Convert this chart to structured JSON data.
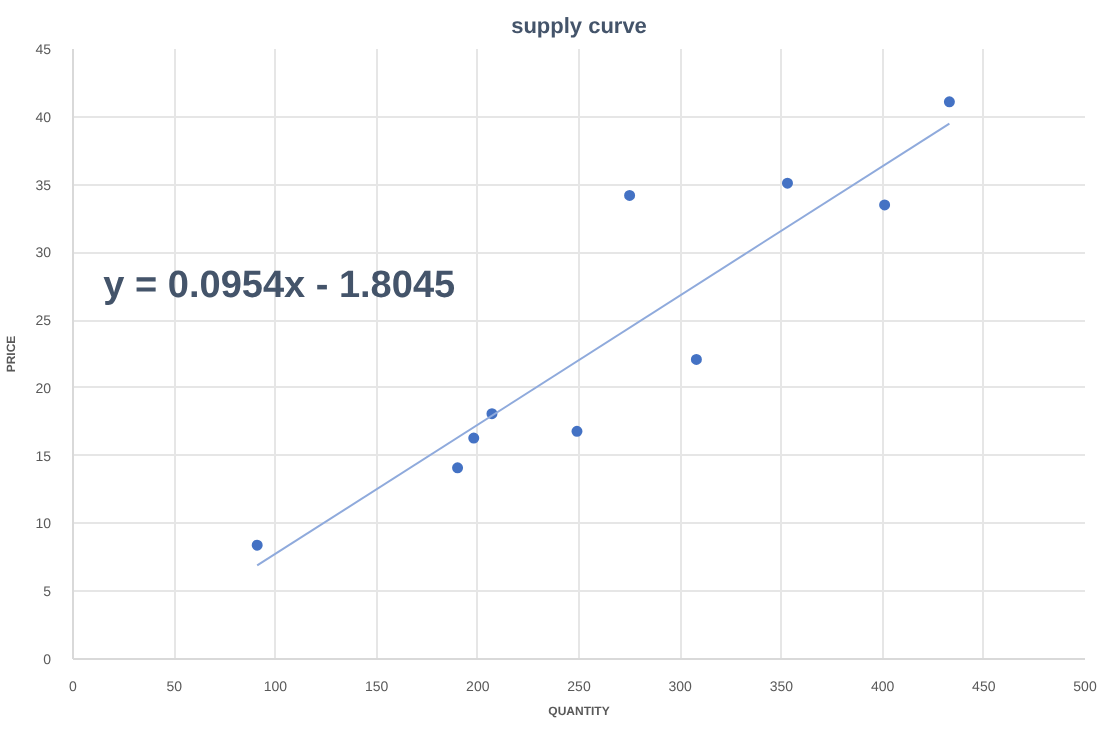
{
  "chart_data": {
    "type": "scatter",
    "title": "supply curve",
    "xlabel": "QUANTITY",
    "ylabel": "PRICE",
    "xlim": [
      0,
      500
    ],
    "xticks": [
      0,
      50,
      100,
      150,
      200,
      250,
      300,
      350,
      400,
      450,
      500
    ],
    "ylim": [
      0,
      45
    ],
    "yticks": [
      0,
      5,
      10,
      15,
      20,
      25,
      30,
      35,
      40,
      45
    ],
    "grid": true,
    "marker": "circle",
    "series": [
      {
        "color": "#4472c4",
        "x": [
          91,
          190,
          198,
          207,
          249,
          275,
          308,
          353,
          401,
          433
        ],
        "values": [
          8.4,
          14.1,
          16.3,
          18.1,
          16.8,
          34.2,
          22.1,
          35.1,
          33.5,
          41.1
        ]
      },
      {
        "type": "line",
        "marker": "none",
        "color": "#8faadc",
        "x": [
          91,
          433
        ],
        "values": [
          6.9,
          39.5
        ]
      }
    ],
    "annotations": [
      "y = 0.0954x - 1.8045"
    ]
  }
}
